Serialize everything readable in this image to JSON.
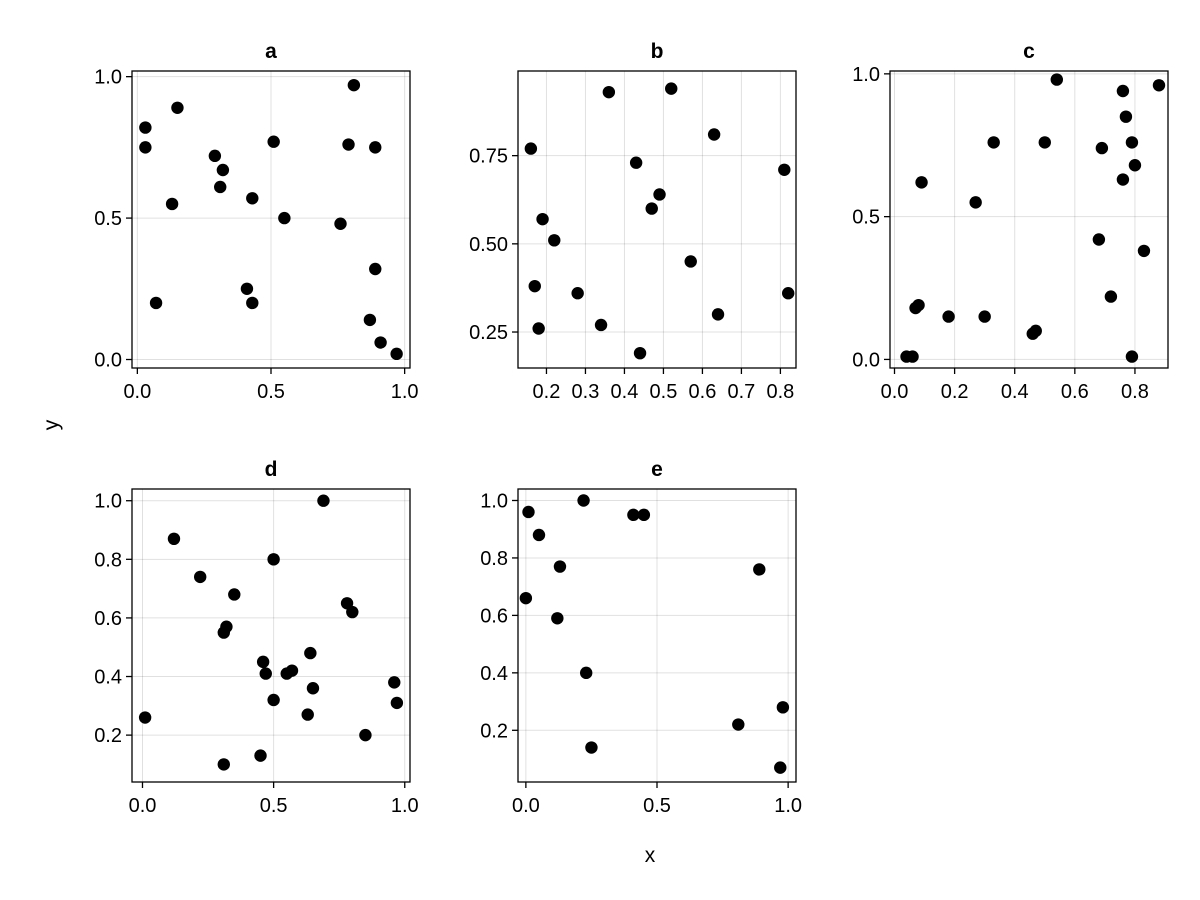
{
  "figure": {
    "xlabel": "x",
    "ylabel": "y"
  },
  "chart_data": [
    {
      "type": "scatter",
      "title": "a",
      "xlim": [
        -0.02,
        1.02
      ],
      "ylim": [
        -0.03,
        1.02
      ],
      "xticks": [
        {
          "v": 0,
          "label": "0.0"
        },
        {
          "v": 0.5,
          "label": "0.5"
        },
        {
          "v": 1,
          "label": "1.0"
        }
      ],
      "yticks": [
        {
          "v": 0,
          "label": "0.0"
        },
        {
          "v": 0.5,
          "label": "0.5"
        },
        {
          "v": 1,
          "label": "1.0"
        }
      ],
      "points": [
        [
          0.03,
          0.82
        ],
        [
          0.03,
          0.75
        ],
        [
          0.15,
          0.89
        ],
        [
          0.13,
          0.55
        ],
        [
          0.07,
          0.2
        ],
        [
          0.29,
          0.72
        ],
        [
          0.32,
          0.67
        ],
        [
          0.31,
          0.61
        ],
        [
          0.43,
          0.57
        ],
        [
          0.41,
          0.25
        ],
        [
          0.43,
          0.2
        ],
        [
          0.51,
          0.77
        ],
        [
          0.55,
          0.5
        ],
        [
          0.76,
          0.48
        ],
        [
          0.79,
          0.76
        ],
        [
          0.81,
          0.97
        ],
        [
          0.89,
          0.75
        ],
        [
          0.89,
          0.32
        ],
        [
          0.87,
          0.14
        ],
        [
          0.91,
          0.06
        ],
        [
          0.97,
          0.02
        ]
      ]
    },
    {
      "type": "scatter",
      "title": "b",
      "xlim": [
        0.127,
        0.84
      ],
      "ylim": [
        0.148,
        0.99
      ],
      "xticks": [
        {
          "v": 0.2,
          "label": "0.2"
        },
        {
          "v": 0.3,
          "label": "0.3"
        },
        {
          "v": 0.4,
          "label": "0.4"
        },
        {
          "v": 0.5,
          "label": "0.5"
        },
        {
          "v": 0.6,
          "label": "0.6"
        },
        {
          "v": 0.7,
          "label": "0.7"
        },
        {
          "v": 0.8,
          "label": "0.8"
        }
      ],
      "yticks": [
        {
          "v": 0.25,
          "label": "0.25"
        },
        {
          "v": 0.5,
          "label": "0.50"
        },
        {
          "v": 0.75,
          "label": "0.75"
        }
      ],
      "points": [
        [
          0.16,
          0.77
        ],
        [
          0.17,
          0.38
        ],
        [
          0.18,
          0.26
        ],
        [
          0.19,
          0.57
        ],
        [
          0.22,
          0.51
        ],
        [
          0.28,
          0.36
        ],
        [
          0.34,
          0.27
        ],
        [
          0.36,
          0.93
        ],
        [
          0.43,
          0.73
        ],
        [
          0.44,
          0.19
        ],
        [
          0.47,
          0.6
        ],
        [
          0.49,
          0.64
        ],
        [
          0.52,
          0.94
        ],
        [
          0.57,
          0.45
        ],
        [
          0.63,
          0.81
        ],
        [
          0.64,
          0.3
        ],
        [
          0.81,
          0.71
        ],
        [
          0.82,
          0.36
        ]
      ]
    },
    {
      "type": "scatter",
      "title": "c",
      "xlim": [
        -0.015,
        0.91
      ],
      "ylim": [
        -0.03,
        1.01
      ],
      "xticks": [
        {
          "v": 0,
          "label": "0.0"
        },
        {
          "v": 0.2,
          "label": "0.2"
        },
        {
          "v": 0.4,
          "label": "0.4"
        },
        {
          "v": 0.6,
          "label": "0.6"
        },
        {
          "v": 0.8,
          "label": "0.8"
        }
      ],
      "yticks": [
        {
          "v": 0,
          "label": "0.0"
        },
        {
          "v": 0.5,
          "label": "0.5"
        },
        {
          "v": 1,
          "label": "1.0"
        }
      ],
      "points": [
        [
          0.04,
          0.01
        ],
        [
          0.06,
          0.01
        ],
        [
          0.07,
          0.18
        ],
        [
          0.08,
          0.19
        ],
        [
          0.09,
          0.62
        ],
        [
          0.18,
          0.15
        ],
        [
          0.27,
          0.55
        ],
        [
          0.3,
          0.15
        ],
        [
          0.33,
          0.76
        ],
        [
          0.46,
          0.09
        ],
        [
          0.47,
          0.1
        ],
        [
          0.5,
          0.76
        ],
        [
          0.54,
          0.98
        ],
        [
          0.68,
          0.42
        ],
        [
          0.69,
          0.74
        ],
        [
          0.72,
          0.22
        ],
        [
          0.76,
          0.94
        ],
        [
          0.76,
          0.63
        ],
        [
          0.77,
          0.85
        ],
        [
          0.79,
          0.76
        ],
        [
          0.79,
          0.01
        ],
        [
          0.8,
          0.68
        ],
        [
          0.83,
          0.38
        ],
        [
          0.88,
          0.96
        ]
      ]
    },
    {
      "type": "scatter",
      "title": "d",
      "xlim": [
        -0.04,
        1.02
      ],
      "ylim": [
        0.04,
        1.04
      ],
      "xticks": [
        {
          "v": 0,
          "label": "0.0"
        },
        {
          "v": 0.5,
          "label": "0.5"
        },
        {
          "v": 1,
          "label": "1.0"
        }
      ],
      "yticks": [
        {
          "v": 0.2,
          "label": "0.2"
        },
        {
          "v": 0.4,
          "label": "0.4"
        },
        {
          "v": 0.6,
          "label": "0.6"
        },
        {
          "v": 0.8,
          "label": "0.8"
        },
        {
          "v": 1.0,
          "label": "1.0"
        }
      ],
      "points": [
        [
          0.01,
          0.26
        ],
        [
          0.12,
          0.87
        ],
        [
          0.22,
          0.74
        ],
        [
          0.31,
          0.55
        ],
        [
          0.32,
          0.57
        ],
        [
          0.35,
          0.68
        ],
        [
          0.31,
          0.1
        ],
        [
          0.45,
          0.13
        ],
        [
          0.46,
          0.45
        ],
        [
          0.47,
          0.41
        ],
        [
          0.5,
          0.8
        ],
        [
          0.5,
          0.32
        ],
        [
          0.55,
          0.41
        ],
        [
          0.57,
          0.42
        ],
        [
          0.63,
          0.27
        ],
        [
          0.64,
          0.48
        ],
        [
          0.65,
          0.36
        ],
        [
          0.69,
          1.0
        ],
        [
          0.78,
          0.65
        ],
        [
          0.8,
          0.62
        ],
        [
          0.85,
          0.2
        ],
        [
          0.96,
          0.38
        ],
        [
          0.97,
          0.31
        ]
      ]
    },
    {
      "type": "scatter",
      "title": "e",
      "xlim": [
        -0.03,
        1.03
      ],
      "ylim": [
        0.02,
        1.04
      ],
      "xticks": [
        {
          "v": 0,
          "label": "0.0"
        },
        {
          "v": 0.5,
          "label": "0.5"
        },
        {
          "v": 1,
          "label": "1.0"
        }
      ],
      "yticks": [
        {
          "v": 0.2,
          "label": "0.2"
        },
        {
          "v": 0.4,
          "label": "0.4"
        },
        {
          "v": 0.6,
          "label": "0.6"
        },
        {
          "v": 0.8,
          "label": "0.8"
        },
        {
          "v": 1.0,
          "label": "1.0"
        }
      ],
      "points": [
        [
          0.0,
          0.66
        ],
        [
          0.01,
          0.96
        ],
        [
          0.05,
          0.88
        ],
        [
          0.12,
          0.59
        ],
        [
          0.13,
          0.77
        ],
        [
          0.22,
          1.0
        ],
        [
          0.23,
          0.4
        ],
        [
          0.25,
          0.14
        ],
        [
          0.41,
          0.95
        ],
        [
          0.45,
          0.95
        ],
        [
          0.81,
          0.22
        ],
        [
          0.89,
          0.76
        ],
        [
          0.97,
          0.07
        ],
        [
          0.98,
          0.28
        ]
      ]
    }
  ]
}
